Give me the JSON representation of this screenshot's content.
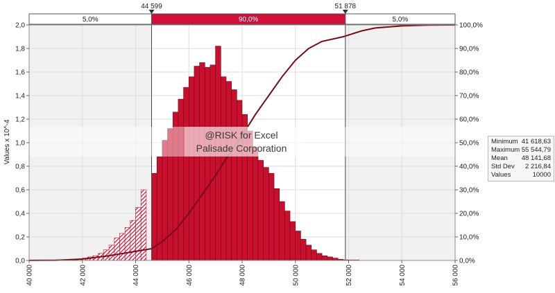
{
  "chart_data": {
    "type": "bar",
    "ylabel": "Values x 10^-4",
    "xlim": [
      40000,
      56000
    ],
    "ylim": [
      0,
      2.0
    ],
    "y2lim": [
      0,
      100
    ],
    "x_tick_labels": [
      "40 000",
      "42 000",
      "44 000",
      "46 000",
      "48 000",
      "50 000",
      "52 000",
      "54 000",
      "56 000"
    ],
    "y_tick_labels": [
      "0,0",
      "0,2",
      "0,4",
      "0,6",
      "0,8",
      "1,0",
      "1,2",
      "1,4",
      "1,6",
      "1,8",
      "2,0"
    ],
    "y2_tick_labels": [
      "0,0%",
      "10,0%",
      "20,0%",
      "30,0%",
      "40,0%",
      "50,0%",
      "60,0%",
      "70,0%",
      "80,0%",
      "90,0%",
      "100,0%"
    ],
    "bin_width": 200,
    "bins": [
      {
        "x": 40000,
        "y": 0.005
      },
      {
        "x": 40200,
        "y": 0.005
      },
      {
        "x": 40400,
        "y": 0.005
      },
      {
        "x": 40600,
        "y": 0.005
      },
      {
        "x": 40800,
        "y": 0.005
      },
      {
        "x": 41000,
        "y": 0.005
      },
      {
        "x": 41200,
        "y": 0.005
      },
      {
        "x": 41400,
        "y": 0.005
      },
      {
        "x": 41600,
        "y": 0.005
      },
      {
        "x": 41800,
        "y": 0.01
      },
      {
        "x": 42000,
        "y": 0.02
      },
      {
        "x": 42200,
        "y": 0.03
      },
      {
        "x": 42400,
        "y": 0.04
      },
      {
        "x": 42600,
        "y": 0.06
      },
      {
        "x": 42800,
        "y": 0.09
      },
      {
        "x": 43000,
        "y": 0.13
      },
      {
        "x": 43200,
        "y": 0.19
      },
      {
        "x": 43400,
        "y": 0.23
      },
      {
        "x": 43600,
        "y": 0.28
      },
      {
        "x": 43800,
        "y": 0.34
      },
      {
        "x": 44000,
        "y": 0.45
      },
      {
        "x": 44200,
        "y": 0.6
      },
      {
        "x": 44600,
        "y": 0.74
      },
      {
        "x": 44800,
        "y": 0.88
      },
      {
        "x": 45000,
        "y": 1.02
      },
      {
        "x": 45200,
        "y": 1.12
      },
      {
        "x": 45400,
        "y": 1.26
      },
      {
        "x": 45600,
        "y": 1.37
      },
      {
        "x": 45800,
        "y": 1.47
      },
      {
        "x": 46000,
        "y": 1.56
      },
      {
        "x": 46200,
        "y": 1.65
      },
      {
        "x": 46400,
        "y": 1.68
      },
      {
        "x": 46600,
        "y": 1.64
      },
      {
        "x": 46800,
        "y": 1.66
      },
      {
        "x": 47000,
        "y": 1.82
      },
      {
        "x": 47200,
        "y": 1.56
      },
      {
        "x": 47400,
        "y": 1.52
      },
      {
        "x": 47600,
        "y": 1.45
      },
      {
        "x": 47800,
        "y": 1.36
      },
      {
        "x": 48000,
        "y": 1.24
      },
      {
        "x": 48200,
        "y": 1.1
      },
      {
        "x": 48400,
        "y": 0.96
      },
      {
        "x": 48600,
        "y": 0.85
      },
      {
        "x": 48800,
        "y": 0.79
      },
      {
        "x": 49000,
        "y": 0.74
      },
      {
        "x": 49200,
        "y": 0.61
      },
      {
        "x": 49400,
        "y": 0.5
      },
      {
        "x": 49600,
        "y": 0.42
      },
      {
        "x": 49800,
        "y": 0.33
      },
      {
        "x": 50000,
        "y": 0.25
      },
      {
        "x": 50200,
        "y": 0.18
      },
      {
        "x": 50400,
        "y": 0.13
      },
      {
        "x": 50600,
        "y": 0.09
      },
      {
        "x": 50800,
        "y": 0.06
      },
      {
        "x": 51000,
        "y": 0.04
      },
      {
        "x": 51200,
        "y": 0.03
      },
      {
        "x": 51400,
        "y": 0.02
      },
      {
        "x": 51600,
        "y": 0.01
      },
      {
        "x": 51800,
        "y": 0.005
      },
      {
        "x": 52000,
        "y": 0.005
      },
      {
        "x": 52200,
        "y": 0.005
      }
    ],
    "cumulative": {
      "x": [
        40000,
        41000,
        42000,
        43000,
        43800,
        44600,
        45000,
        45500,
        46000,
        46500,
        47000,
        47500,
        48000,
        48500,
        49000,
        49500,
        50000,
        50500,
        51000,
        51800,
        52500,
        53000,
        54000,
        55000,
        56000
      ],
      "y": [
        0,
        0.1,
        0.6,
        2,
        3.5,
        5,
        8,
        13,
        20,
        28,
        36,
        45,
        53,
        62,
        70,
        78,
        85,
        90,
        93,
        95,
        97.5,
        98.7,
        99.6,
        99.9,
        100
      ]
    },
    "delimiters": {
      "left": {
        "value": 44599,
        "label": "44 599"
      },
      "right": {
        "value": 51878,
        "label": "51 878"
      }
    },
    "bands": [
      {
        "label": "5,0%"
      },
      {
        "label": "90,0%"
      },
      {
        "label": "5,0%"
      }
    ],
    "watermark": [
      "@RISK for Excel",
      "Palisade Corporation"
    ],
    "stats": [
      {
        "label": "Minimum",
        "value": "41 618,63"
      },
      {
        "label": "Maximum",
        "value": "55 544,79"
      },
      {
        "label": "Mean",
        "value": "48 141,68"
      },
      {
        "label": "Std Dev",
        "value": "2 216,84"
      },
      {
        "label": "Values",
        "value": "10000"
      }
    ],
    "colors": {
      "bar": "#c8102e",
      "bar_edge": "#6a0a18",
      "curve": "#7a0a18",
      "band_middle": "#d0103a",
      "hatch": "#c8102e"
    }
  }
}
